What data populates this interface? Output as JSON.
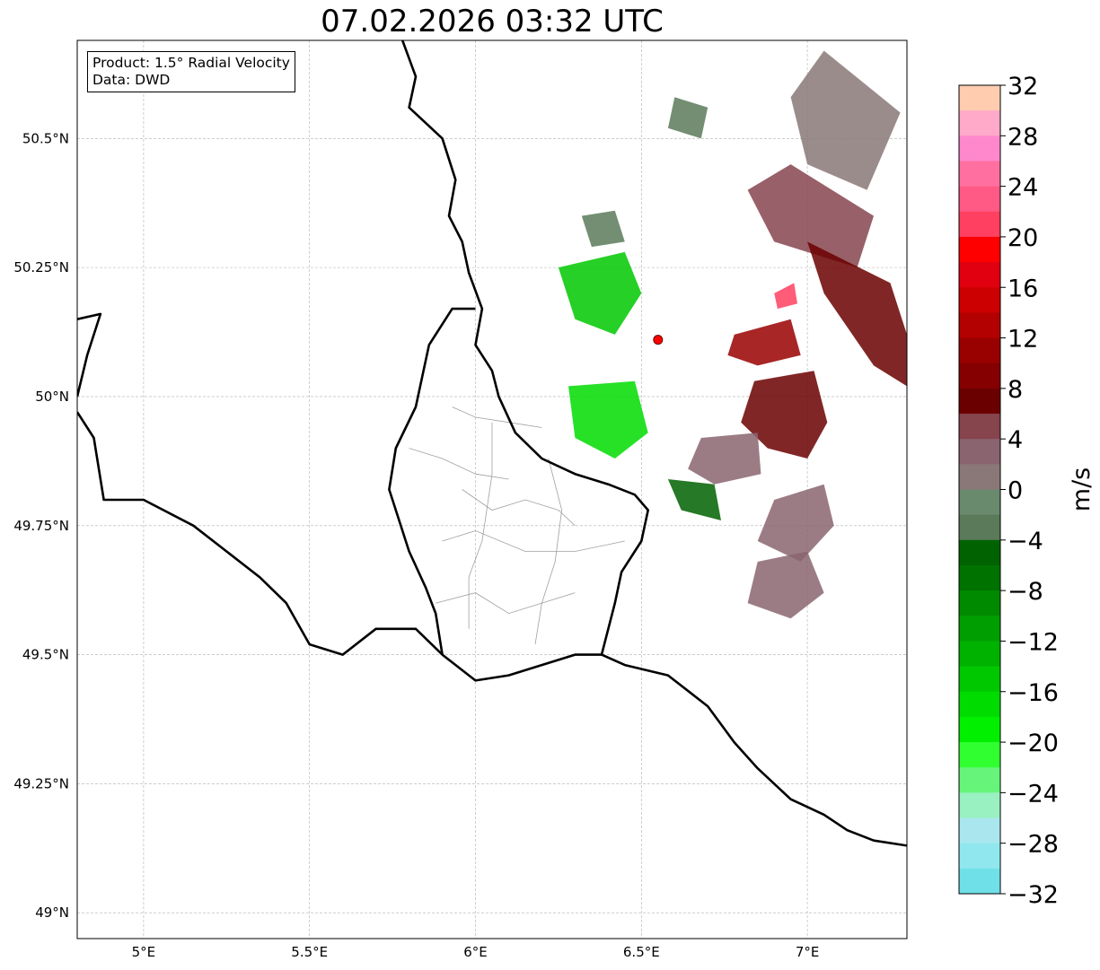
{
  "title": "07.02.2026 03:32 UTC",
  "info": {
    "product": "Product: 1.5° Radial Velocity",
    "data": "Data: DWD"
  },
  "axes": {
    "lon_range": [
      4.8,
      7.3
    ],
    "lat_range": [
      48.95,
      50.69
    ],
    "lon_ticks": [
      {
        "value": 5.0,
        "label": "5°E"
      },
      {
        "value": 5.5,
        "label": "5.5°E"
      },
      {
        "value": 6.0,
        "label": "6°E"
      },
      {
        "value": 6.5,
        "label": "6.5°E"
      },
      {
        "value": 7.0,
        "label": "7°E"
      }
    ],
    "lat_ticks": [
      {
        "value": 50.5,
        "label": "50.5°N"
      },
      {
        "value": 50.25,
        "label": "50.25°N"
      },
      {
        "value": 50.0,
        "label": "50°N"
      },
      {
        "value": 49.75,
        "label": "49.75°N"
      },
      {
        "value": 49.5,
        "label": "49.5°N"
      },
      {
        "value": 49.25,
        "label": "49.25°N"
      },
      {
        "value": 49.0,
        "label": "49°N"
      }
    ],
    "grid": true
  },
  "radar_site": {
    "lon": 6.55,
    "lat": 50.11,
    "color": "#ff0000"
  },
  "colorbar": {
    "label": "m/s",
    "vmin": -32,
    "vmax": 32,
    "ticks": [
      {
        "value": 32,
        "label": "32"
      },
      {
        "value": 28,
        "label": "28"
      },
      {
        "value": 24,
        "label": "24"
      },
      {
        "value": 20,
        "label": "20"
      },
      {
        "value": 16,
        "label": "16"
      },
      {
        "value": 12,
        "label": "12"
      },
      {
        "value": 8,
        "label": "8"
      },
      {
        "value": 4,
        "label": "4"
      },
      {
        "value": 0,
        "label": "0"
      },
      {
        "value": -4,
        "label": "−4"
      },
      {
        "value": -8,
        "label": "−8"
      },
      {
        "value": -12,
        "label": "−12"
      },
      {
        "value": -16,
        "label": "−16"
      },
      {
        "value": -20,
        "label": "−20"
      },
      {
        "value": -24,
        "label": "−24"
      },
      {
        "value": -28,
        "label": "−28"
      },
      {
        "value": -32,
        "label": "−32"
      }
    ],
    "bins": [
      {
        "from": 30,
        "to": 32,
        "color": "#ffccb0"
      },
      {
        "from": 28,
        "to": 30,
        "color": "#ffaac8"
      },
      {
        "from": 26,
        "to": 28,
        "color": "#ff88cc"
      },
      {
        "from": 24,
        "to": 26,
        "color": "#ff70a0"
      },
      {
        "from": 22,
        "to": 24,
        "color": "#ff5a85"
      },
      {
        "from": 20,
        "to": 22,
        "color": "#ff4060"
      },
      {
        "from": 18,
        "to": 20,
        "color": "#ff0000"
      },
      {
        "from": 16,
        "to": 18,
        "color": "#e00010"
      },
      {
        "from": 14,
        "to": 16,
        "color": "#cc0000"
      },
      {
        "from": 12,
        "to": 14,
        "color": "#b30000"
      },
      {
        "from": 10,
        "to": 12,
        "color": "#990000"
      },
      {
        "from": 8,
        "to": 10,
        "color": "#850000"
      },
      {
        "from": 6,
        "to": 8,
        "color": "#6b0000"
      },
      {
        "from": 4,
        "to": 6,
        "color": "#86444d"
      },
      {
        "from": 2,
        "to": 4,
        "color": "#8a6570"
      },
      {
        "from": 0,
        "to": 2,
        "color": "#8a7878"
      },
      {
        "from": -2,
        "to": 0,
        "color": "#6a8a6e"
      },
      {
        "from": -4,
        "to": -2,
        "color": "#5a7a5a"
      },
      {
        "from": -6,
        "to": -4,
        "color": "#006200"
      },
      {
        "from": -8,
        "to": -6,
        "color": "#007200"
      },
      {
        "from": -10,
        "to": -8,
        "color": "#008a00"
      },
      {
        "from": -12,
        "to": -10,
        "color": "#009e00"
      },
      {
        "from": -14,
        "to": -12,
        "color": "#00b200"
      },
      {
        "from": -16,
        "to": -14,
        "color": "#00c800"
      },
      {
        "from": -18,
        "to": -16,
        "color": "#00dc00"
      },
      {
        "from": -20,
        "to": -18,
        "color": "#00f000"
      },
      {
        "from": -22,
        "to": -20,
        "color": "#30ff30"
      },
      {
        "from": -24,
        "to": -22,
        "color": "#66f57a"
      },
      {
        "from": -26,
        "to": -24,
        "color": "#99f0c0"
      },
      {
        "from": -28,
        "to": -26,
        "color": "#aae6ee"
      },
      {
        "from": -30,
        "to": -28,
        "color": "#90e8ee"
      },
      {
        "from": -32,
        "to": -30,
        "color": "#70e0e8"
      }
    ]
  },
  "borders": {
    "thick": [
      [
        [
          5.78,
          50.69
        ],
        [
          5.82,
          50.62
        ],
        [
          5.8,
          50.56
        ],
        [
          5.9,
          50.5
        ],
        [
          5.94,
          50.42
        ],
        [
          5.92,
          50.35
        ],
        [
          5.96,
          50.3
        ],
        [
          5.98,
          50.24
        ],
        [
          6.02,
          50.17
        ],
        [
          6.0,
          50.1
        ],
        [
          6.05,
          50.05
        ],
        [
          6.07,
          50.0
        ],
        [
          6.12,
          49.93
        ],
        [
          6.2,
          49.88
        ],
        [
          6.3,
          49.85
        ],
        [
          6.4,
          49.83
        ],
        [
          6.48,
          49.81
        ],
        [
          6.52,
          49.78
        ],
        [
          6.5,
          49.72
        ],
        [
          6.44,
          49.66
        ],
        [
          6.42,
          49.6
        ],
        [
          6.38,
          49.5
        ],
        [
          6.45,
          49.48
        ],
        [
          6.58,
          49.46
        ],
        [
          6.7,
          49.4
        ],
        [
          6.78,
          49.33
        ],
        [
          6.85,
          49.28
        ],
        [
          6.95,
          49.22
        ],
        [
          7.05,
          49.19
        ],
        [
          7.12,
          49.16
        ],
        [
          7.2,
          49.14
        ],
        [
          7.3,
          49.13
        ]
      ],
      [
        [
          6.38,
          49.5
        ],
        [
          6.3,
          49.5
        ],
        [
          6.2,
          49.48
        ],
        [
          6.1,
          49.46
        ],
        [
          6.0,
          49.45
        ],
        [
          5.9,
          49.5
        ],
        [
          5.82,
          49.55
        ],
        [
          5.7,
          49.55
        ],
        [
          5.6,
          49.5
        ],
        [
          5.5,
          49.52
        ],
        [
          5.43,
          49.6
        ],
        [
          5.35,
          49.65
        ],
        [
          5.25,
          49.7
        ],
        [
          5.15,
          49.75
        ],
        [
          5.0,
          49.8
        ],
        [
          4.88,
          49.8
        ],
        [
          4.85,
          49.92
        ],
        [
          4.8,
          49.97
        ]
      ],
      [
        [
          6.0,
          50.17
        ],
        [
          5.93,
          50.17
        ],
        [
          5.86,
          50.1
        ],
        [
          5.82,
          49.98
        ],
        [
          5.76,
          49.9
        ],
        [
          5.74,
          49.82
        ],
        [
          5.8,
          49.7
        ],
        [
          5.85,
          49.63
        ],
        [
          5.88,
          49.58
        ],
        [
          5.9,
          49.5
        ]
      ],
      [
        [
          4.8,
          50.15
        ],
        [
          4.87,
          50.16
        ],
        [
          4.83,
          50.08
        ],
        [
          4.8,
          50.0
        ]
      ]
    ],
    "thin": [
      [
        [
          5.93,
          49.98
        ],
        [
          6.0,
          49.96
        ],
        [
          6.1,
          49.95
        ],
        [
          6.2,
          49.94
        ]
      ],
      [
        [
          5.8,
          49.9
        ],
        [
          5.9,
          49.88
        ],
        [
          6.0,
          49.85
        ],
        [
          6.1,
          49.84
        ]
      ],
      [
        [
          5.96,
          49.82
        ],
        [
          6.05,
          49.78
        ],
        [
          6.15,
          49.8
        ],
        [
          6.25,
          49.78
        ],
        [
          6.3,
          49.75
        ]
      ],
      [
        [
          5.9,
          49.72
        ],
        [
          6.0,
          49.74
        ],
        [
          6.15,
          49.7
        ],
        [
          6.3,
          49.7
        ],
        [
          6.45,
          49.72
        ]
      ],
      [
        [
          5.88,
          49.6
        ],
        [
          6.0,
          49.62
        ],
        [
          6.1,
          49.58
        ],
        [
          6.2,
          49.6
        ],
        [
          6.3,
          49.62
        ]
      ],
      [
        [
          6.05,
          49.95
        ],
        [
          6.05,
          49.85
        ],
        [
          6.02,
          49.72
        ],
        [
          5.98,
          49.65
        ],
        [
          5.98,
          49.55
        ]
      ],
      [
        [
          6.22,
          49.88
        ],
        [
          6.26,
          49.78
        ],
        [
          6.24,
          49.68
        ],
        [
          6.2,
          49.6
        ],
        [
          6.18,
          49.52
        ]
      ]
    ]
  },
  "echo_regions": [
    {
      "color": "#8a7878",
      "polygon": [
        [
          7.05,
          50.67
        ],
        [
          7.28,
          50.55
        ],
        [
          7.18,
          50.4
        ],
        [
          7.0,
          50.45
        ],
        [
          6.95,
          50.58
        ]
      ]
    },
    {
      "color": "#86444d",
      "polygon": [
        [
          6.95,
          50.45
        ],
        [
          7.2,
          50.35
        ],
        [
          7.15,
          50.25
        ],
        [
          6.9,
          50.3
        ],
        [
          6.82,
          50.4
        ]
      ]
    },
    {
      "color": "#6b0000",
      "polygon": [
        [
          7.0,
          50.3
        ],
        [
          7.25,
          50.22
        ],
        [
          7.3,
          50.12
        ],
        [
          7.3,
          50.02
        ],
        [
          7.2,
          50.06
        ],
        [
          7.05,
          50.2
        ]
      ]
    },
    {
      "color": "#6b0000",
      "polygon": [
        [
          6.84,
          50.03
        ],
        [
          7.02,
          50.05
        ],
        [
          7.06,
          49.95
        ],
        [
          7.0,
          49.88
        ],
        [
          6.88,
          49.9
        ],
        [
          6.8,
          49.95
        ]
      ]
    },
    {
      "color": "#990000",
      "polygon": [
        [
          6.78,
          50.12
        ],
        [
          6.95,
          50.15
        ],
        [
          6.98,
          50.08
        ],
        [
          6.85,
          50.06
        ],
        [
          6.76,
          50.08
        ]
      ]
    },
    {
      "color": "#8a6570",
      "polygon": [
        [
          6.68,
          49.92
        ],
        [
          6.85,
          49.93
        ],
        [
          6.86,
          49.85
        ],
        [
          6.72,
          49.83
        ],
        [
          6.64,
          49.86
        ]
      ]
    },
    {
      "color": "#8a6570",
      "polygon": [
        [
          6.9,
          49.8
        ],
        [
          7.05,
          49.83
        ],
        [
          7.08,
          49.75
        ],
        [
          6.98,
          49.68
        ],
        [
          6.85,
          49.72
        ]
      ]
    },
    {
      "color": "#8a6570",
      "polygon": [
        [
          6.85,
          49.68
        ],
        [
          7.0,
          49.7
        ],
        [
          7.05,
          49.62
        ],
        [
          6.95,
          49.57
        ],
        [
          6.82,
          49.6
        ]
      ]
    },
    {
      "color": "#00c800",
      "polygon": [
        [
          6.25,
          50.25
        ],
        [
          6.45,
          50.28
        ],
        [
          6.5,
          50.2
        ],
        [
          6.42,
          50.12
        ],
        [
          6.3,
          50.15
        ]
      ]
    },
    {
      "color": "#00dc00",
      "polygon": [
        [
          6.28,
          50.02
        ],
        [
          6.48,
          50.03
        ],
        [
          6.52,
          49.93
        ],
        [
          6.42,
          49.88
        ],
        [
          6.3,
          49.92
        ]
      ]
    },
    {
      "color": "#5a7a5a",
      "polygon": [
        [
          6.32,
          50.35
        ],
        [
          6.42,
          50.36
        ],
        [
          6.45,
          50.3
        ],
        [
          6.35,
          50.29
        ]
      ]
    },
    {
      "color": "#5a7a5a",
      "polygon": [
        [
          6.6,
          50.58
        ],
        [
          6.7,
          50.56
        ],
        [
          6.68,
          50.5
        ],
        [
          6.58,
          50.52
        ]
      ]
    },
    {
      "color": "#006200",
      "polygon": [
        [
          6.58,
          49.84
        ],
        [
          6.72,
          49.83
        ],
        [
          6.74,
          49.76
        ],
        [
          6.62,
          49.78
        ]
      ]
    },
    {
      "color": "#ff4060",
      "polygon": [
        [
          6.9,
          50.2
        ],
        [
          6.96,
          50.22
        ],
        [
          6.97,
          50.18
        ],
        [
          6.91,
          50.17
        ]
      ]
    }
  ]
}
